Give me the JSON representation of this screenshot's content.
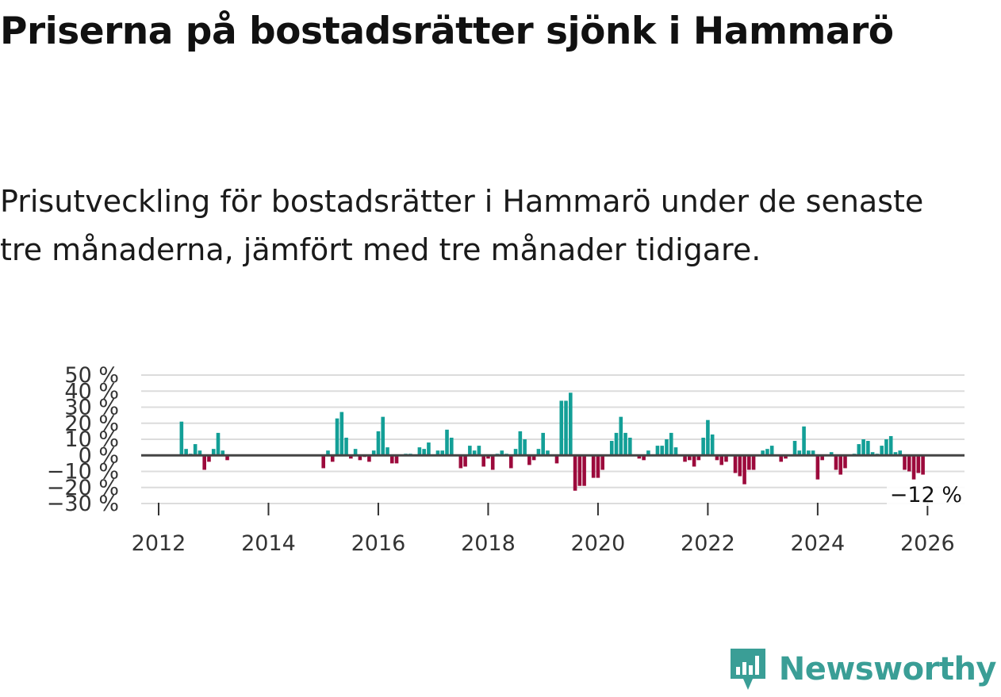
{
  "title": "Priserna på bostadsrätter sjönk i Hammarö",
  "subtitle": "Prisutveckling för bostadsrätter i Hammarö under de senaste tre månaderna, jämfört med tre månader tidigare.",
  "brand": {
    "name": "Newsworthy",
    "color": "#3a9e96",
    "icon": "newsworthy-logo-icon"
  },
  "colors": {
    "positive": "#139f97",
    "negative": "#9c0a3c",
    "grid": "#dcdcdc",
    "zero_line": "#444444"
  },
  "chart_data": {
    "type": "bar",
    "ylabel": "",
    "xlabel": "",
    "ylim": [
      -30,
      50
    ],
    "y_ticks": [
      50,
      40,
      30,
      20,
      10,
      0,
      -10,
      -20,
      -30
    ],
    "y_tick_labels": [
      "50 %",
      "40 %",
      "30 %",
      "20 %",
      "10 %",
      "0 %",
      "−10 %",
      "−20 %",
      "−30 %"
    ],
    "x_ticks": [
      "2012",
      "2014",
      "2016",
      "2018",
      "2020",
      "2022",
      "2024",
      "2026"
    ],
    "x_start": "2012-01",
    "grid": true,
    "annotation": {
      "date": "2025-12",
      "text": "−12 %"
    },
    "series": [
      {
        "dates": [
          "2012-06",
          "2012-07",
          "2012-08",
          "2012-09",
          "2012-10",
          "2012-11",
          "2012-12",
          "2013-01",
          "2013-02",
          "2013-03",
          "2013-04",
          "2015-01",
          "2015-02",
          "2015-03",
          "2015-04",
          "2015-05",
          "2015-06",
          "2015-07",
          "2015-08",
          "2015-09",
          "2015-10",
          "2015-11",
          "2015-12",
          "2016-01",
          "2016-02",
          "2016-03",
          "2016-04",
          "2016-05",
          "2016-06",
          "2016-07",
          "2016-08",
          "2016-09",
          "2016-10",
          "2016-11",
          "2016-12",
          "2017-01",
          "2017-02",
          "2017-03",
          "2017-04",
          "2017-05",
          "2017-06",
          "2017-07",
          "2017-08",
          "2017-09",
          "2017-10",
          "2017-11",
          "2017-12",
          "2018-01",
          "2018-02",
          "2018-03",
          "2018-04",
          "2018-05",
          "2018-06",
          "2018-07",
          "2018-08",
          "2018-09",
          "2018-10",
          "2018-11",
          "2018-12",
          "2019-01",
          "2019-02",
          "2019-03",
          "2019-04",
          "2019-05",
          "2019-06",
          "2019-07",
          "2019-08",
          "2019-09",
          "2019-10",
          "2019-11",
          "2019-12",
          "2020-01",
          "2020-02",
          "2020-03",
          "2020-04",
          "2020-05",
          "2020-06",
          "2020-07",
          "2020-08",
          "2020-09",
          "2020-10",
          "2020-11",
          "2020-12",
          "2021-01",
          "2021-02",
          "2021-03",
          "2021-04",
          "2021-05",
          "2021-06",
          "2021-07",
          "2021-08",
          "2021-09",
          "2021-10",
          "2021-11",
          "2021-12",
          "2022-01",
          "2022-02",
          "2022-03",
          "2022-04",
          "2022-05",
          "2022-06",
          "2022-07",
          "2022-08",
          "2022-09",
          "2022-10",
          "2022-11",
          "2022-12",
          "2023-01",
          "2023-02",
          "2023-03",
          "2023-04",
          "2023-05",
          "2023-06",
          "2023-07",
          "2023-08",
          "2023-09",
          "2023-10",
          "2023-11",
          "2023-12",
          "2024-01",
          "2024-02",
          "2024-03",
          "2024-04",
          "2024-05",
          "2024-06",
          "2024-07",
          "2024-08",
          "2024-09",
          "2024-10",
          "2024-11",
          "2024-12",
          "2025-01",
          "2025-02",
          "2025-03",
          "2025-04",
          "2025-05",
          "2025-06",
          "2025-07",
          "2025-08",
          "2025-09",
          "2025-10",
          "2025-11",
          "2025-12"
        ],
        "values": [
          21,
          4,
          1,
          7,
          3,
          -9,
          -4,
          4,
          14,
          3,
          -3,
          -8,
          3,
          -4,
          23,
          27,
          11,
          -2,
          4,
          -3,
          -1,
          -4,
          3,
          15,
          24,
          5,
          -5,
          -5,
          0,
          1,
          1,
          0,
          5,
          4,
          8,
          0,
          3,
          3,
          16,
          11,
          0,
          -8,
          -7,
          6,
          3,
          6,
          -7,
          -2,
          -9,
          1,
          3,
          1,
          -8,
          4,
          15,
          10,
          -6,
          -3,
          4,
          14,
          3,
          0,
          -5,
          34,
          34,
          39,
          -22,
          -19,
          -19,
          0,
          -14,
          -14,
          -9,
          0,
          9,
          14,
          24,
          14,
          11,
          0,
          -2,
          -3,
          3,
          0,
          6,
          6,
          10,
          14,
          5,
          0,
          -4,
          -3,
          -7,
          -3,
          11,
          22,
          13,
          -3,
          -6,
          -4,
          0,
          -11,
          -13,
          -18,
          -9,
          -9,
          0,
          3,
          4,
          6,
          0,
          -4,
          -2,
          0,
          9,
          3,
          18,
          3,
          3,
          -15,
          -3,
          0,
          2,
          -9,
          -12,
          -8,
          0,
          1,
          7,
          10,
          9,
          2,
          1,
          6,
          10,
          12,
          2,
          3,
          -9,
          -10,
          -15,
          -11,
          -12
        ]
      }
    ]
  }
}
